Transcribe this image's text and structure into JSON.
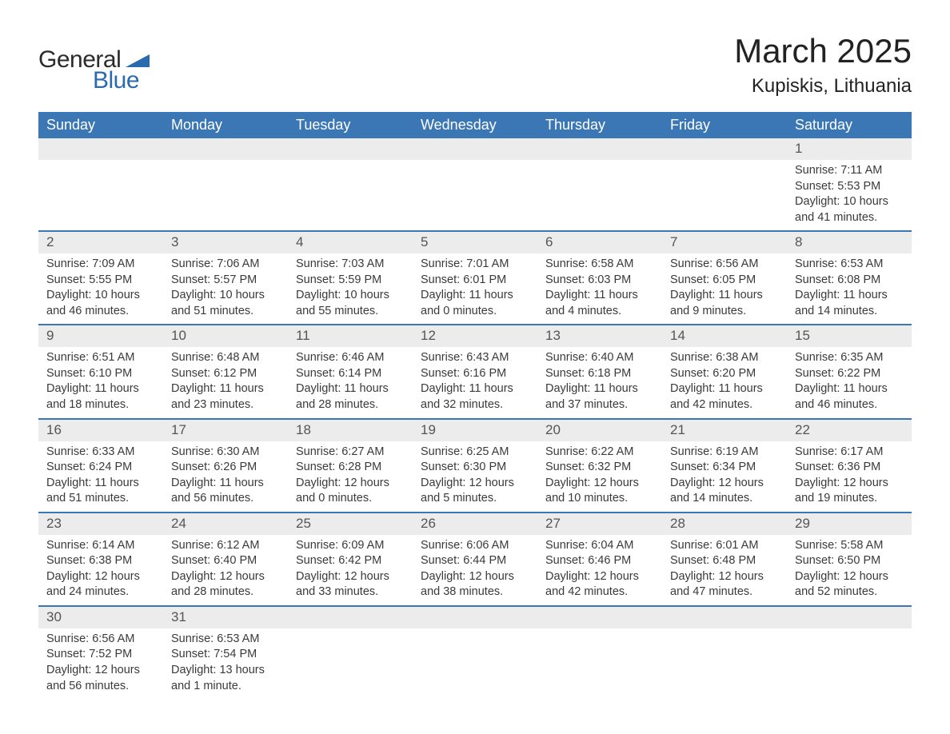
{
  "logo": {
    "general": "General",
    "blue": "Blue",
    "tri_color": "#2a6bb0",
    "text_dark": "#2b2b2b"
  },
  "header": {
    "month_title": "March 2025",
    "location": "Kupiskis, Lithuania"
  },
  "colors": {
    "header_bg": "#3b77b5",
    "header_text": "#ffffff",
    "daynum_bg": "#ececec",
    "row_divider": "#3b77b5",
    "body_text": "#3a3a3a",
    "page_bg": "#ffffff"
  },
  "typography": {
    "title_fontsize_pt": 32,
    "location_fontsize_pt": 18,
    "weekday_fontsize_pt": 14,
    "daynum_fontsize_pt": 13,
    "body_fontsize_pt": 11
  },
  "columns": [
    "Sunday",
    "Monday",
    "Tuesday",
    "Wednesday",
    "Thursday",
    "Friday",
    "Saturday"
  ],
  "weeks": [
    [
      null,
      null,
      null,
      null,
      null,
      null,
      {
        "n": "1",
        "sr": "Sunrise: 7:11 AM",
        "ss": "Sunset: 5:53 PM",
        "d1": "Daylight: 10 hours",
        "d2": "and 41 minutes."
      }
    ],
    [
      {
        "n": "2",
        "sr": "Sunrise: 7:09 AM",
        "ss": "Sunset: 5:55 PM",
        "d1": "Daylight: 10 hours",
        "d2": "and 46 minutes."
      },
      {
        "n": "3",
        "sr": "Sunrise: 7:06 AM",
        "ss": "Sunset: 5:57 PM",
        "d1": "Daylight: 10 hours",
        "d2": "and 51 minutes."
      },
      {
        "n": "4",
        "sr": "Sunrise: 7:03 AM",
        "ss": "Sunset: 5:59 PM",
        "d1": "Daylight: 10 hours",
        "d2": "and 55 minutes."
      },
      {
        "n": "5",
        "sr": "Sunrise: 7:01 AM",
        "ss": "Sunset: 6:01 PM",
        "d1": "Daylight: 11 hours",
        "d2": "and 0 minutes."
      },
      {
        "n": "6",
        "sr": "Sunrise: 6:58 AM",
        "ss": "Sunset: 6:03 PM",
        "d1": "Daylight: 11 hours",
        "d2": "and 4 minutes."
      },
      {
        "n": "7",
        "sr": "Sunrise: 6:56 AM",
        "ss": "Sunset: 6:05 PM",
        "d1": "Daylight: 11 hours",
        "d2": "and 9 minutes."
      },
      {
        "n": "8",
        "sr": "Sunrise: 6:53 AM",
        "ss": "Sunset: 6:08 PM",
        "d1": "Daylight: 11 hours",
        "d2": "and 14 minutes."
      }
    ],
    [
      {
        "n": "9",
        "sr": "Sunrise: 6:51 AM",
        "ss": "Sunset: 6:10 PM",
        "d1": "Daylight: 11 hours",
        "d2": "and 18 minutes."
      },
      {
        "n": "10",
        "sr": "Sunrise: 6:48 AM",
        "ss": "Sunset: 6:12 PM",
        "d1": "Daylight: 11 hours",
        "d2": "and 23 minutes."
      },
      {
        "n": "11",
        "sr": "Sunrise: 6:46 AM",
        "ss": "Sunset: 6:14 PM",
        "d1": "Daylight: 11 hours",
        "d2": "and 28 minutes."
      },
      {
        "n": "12",
        "sr": "Sunrise: 6:43 AM",
        "ss": "Sunset: 6:16 PM",
        "d1": "Daylight: 11 hours",
        "d2": "and 32 minutes."
      },
      {
        "n": "13",
        "sr": "Sunrise: 6:40 AM",
        "ss": "Sunset: 6:18 PM",
        "d1": "Daylight: 11 hours",
        "d2": "and 37 minutes."
      },
      {
        "n": "14",
        "sr": "Sunrise: 6:38 AM",
        "ss": "Sunset: 6:20 PM",
        "d1": "Daylight: 11 hours",
        "d2": "and 42 minutes."
      },
      {
        "n": "15",
        "sr": "Sunrise: 6:35 AM",
        "ss": "Sunset: 6:22 PM",
        "d1": "Daylight: 11 hours",
        "d2": "and 46 minutes."
      }
    ],
    [
      {
        "n": "16",
        "sr": "Sunrise: 6:33 AM",
        "ss": "Sunset: 6:24 PM",
        "d1": "Daylight: 11 hours",
        "d2": "and 51 minutes."
      },
      {
        "n": "17",
        "sr": "Sunrise: 6:30 AM",
        "ss": "Sunset: 6:26 PM",
        "d1": "Daylight: 11 hours",
        "d2": "and 56 minutes."
      },
      {
        "n": "18",
        "sr": "Sunrise: 6:27 AM",
        "ss": "Sunset: 6:28 PM",
        "d1": "Daylight: 12 hours",
        "d2": "and 0 minutes."
      },
      {
        "n": "19",
        "sr": "Sunrise: 6:25 AM",
        "ss": "Sunset: 6:30 PM",
        "d1": "Daylight: 12 hours",
        "d2": "and 5 minutes."
      },
      {
        "n": "20",
        "sr": "Sunrise: 6:22 AM",
        "ss": "Sunset: 6:32 PM",
        "d1": "Daylight: 12 hours",
        "d2": "and 10 minutes."
      },
      {
        "n": "21",
        "sr": "Sunrise: 6:19 AM",
        "ss": "Sunset: 6:34 PM",
        "d1": "Daylight: 12 hours",
        "d2": "and 14 minutes."
      },
      {
        "n": "22",
        "sr": "Sunrise: 6:17 AM",
        "ss": "Sunset: 6:36 PM",
        "d1": "Daylight: 12 hours",
        "d2": "and 19 minutes."
      }
    ],
    [
      {
        "n": "23",
        "sr": "Sunrise: 6:14 AM",
        "ss": "Sunset: 6:38 PM",
        "d1": "Daylight: 12 hours",
        "d2": "and 24 minutes."
      },
      {
        "n": "24",
        "sr": "Sunrise: 6:12 AM",
        "ss": "Sunset: 6:40 PM",
        "d1": "Daylight: 12 hours",
        "d2": "and 28 minutes."
      },
      {
        "n": "25",
        "sr": "Sunrise: 6:09 AM",
        "ss": "Sunset: 6:42 PM",
        "d1": "Daylight: 12 hours",
        "d2": "and 33 minutes."
      },
      {
        "n": "26",
        "sr": "Sunrise: 6:06 AM",
        "ss": "Sunset: 6:44 PM",
        "d1": "Daylight: 12 hours",
        "d2": "and 38 minutes."
      },
      {
        "n": "27",
        "sr": "Sunrise: 6:04 AM",
        "ss": "Sunset: 6:46 PM",
        "d1": "Daylight: 12 hours",
        "d2": "and 42 minutes."
      },
      {
        "n": "28",
        "sr": "Sunrise: 6:01 AM",
        "ss": "Sunset: 6:48 PM",
        "d1": "Daylight: 12 hours",
        "d2": "and 47 minutes."
      },
      {
        "n": "29",
        "sr": "Sunrise: 5:58 AM",
        "ss": "Sunset: 6:50 PM",
        "d1": "Daylight: 12 hours",
        "d2": "and 52 minutes."
      }
    ],
    [
      {
        "n": "30",
        "sr": "Sunrise: 6:56 AM",
        "ss": "Sunset: 7:52 PM",
        "d1": "Daylight: 12 hours",
        "d2": "and 56 minutes."
      },
      {
        "n": "31",
        "sr": "Sunrise: 6:53 AM",
        "ss": "Sunset: 7:54 PM",
        "d1": "Daylight: 13 hours",
        "d2": "and 1 minute."
      },
      null,
      null,
      null,
      null,
      null
    ]
  ]
}
